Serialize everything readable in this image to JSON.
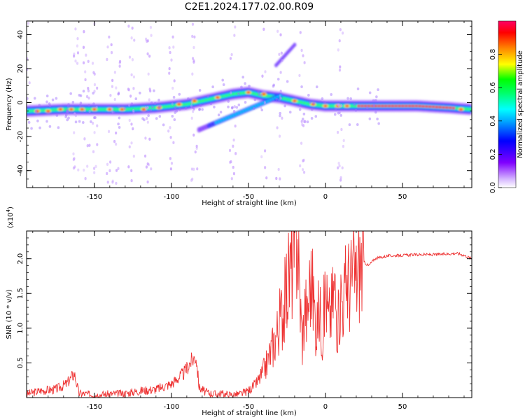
{
  "figure": {
    "title": "C2E1.2024.177.02.00.R09"
  },
  "chart_data": [
    {
      "type": "heatmap",
      "xlabel": "Height of straight line (km)",
      "ylabel": "Frequency (Hz)",
      "xlim": [
        -194,
        95
      ],
      "ylim": [
        -50,
        48
      ],
      "xticks": [
        -150,
        -100,
        -50,
        0,
        50
      ],
      "yticks": [
        -40,
        -20,
        0,
        20,
        40
      ],
      "colorbar": {
        "label": "Normalized spectral amplitude",
        "range": [
          0,
          1
        ],
        "ticks": [
          0.0,
          0.2,
          0.4,
          0.6,
          0.8
        ],
        "colors": [
          "#ffffff",
          "#c8a0ff",
          "#8000ff",
          "#0000ff",
          "#00c8ff",
          "#00ffff",
          "#00ff60",
          "#00ff00",
          "#ffff00",
          "#ff8000",
          "#ff0000",
          "#ff0060"
        ]
      },
      "ridge": {
        "x": [
          -194,
          -170,
          -150,
          -130,
          -110,
          -100,
          -90,
          -80,
          -70,
          -60,
          -50,
          -40,
          -30,
          -20,
          -10,
          0,
          10,
          20,
          40,
          60,
          80,
          95
        ],
        "y": [
          -5,
          -4,
          -4,
          -4,
          -3,
          -2,
          -1,
          1,
          3,
          5,
          6,
          4,
          3,
          1,
          -1,
          -2,
          -2,
          -2,
          -2,
          -2,
          -3,
          -4
        ]
      }
    },
    {
      "type": "line",
      "xlabel": "Height of straight line (km)",
      "ylabel": "SNR (10 * v/v)",
      "y_multiplier": "(x10",
      "y_multiplier_exp": "4",
      "xlim": [
        -194,
        95
      ],
      "ylim": [
        0,
        2.4
      ],
      "xticks": [
        -150,
        -100,
        -50,
        0,
        50
      ],
      "yticks": [
        0.5,
        1.0,
        1.5,
        2.0
      ],
      "line_color": "#ee3333",
      "series": [
        {
          "x": [
            -194,
            -185,
            -175,
            -168,
            -163,
            -160,
            -150,
            -140,
            -130,
            -120,
            -110,
            -100,
            -92,
            -88,
            -84,
            -82,
            -78,
            -72,
            -68,
            -62,
            -55,
            -50,
            -45,
            -42,
            -38,
            -35,
            -32,
            -30,
            -27,
            -25,
            -22,
            -20,
            -18,
            -17,
            -16,
            -15,
            -13,
            -12,
            -10,
            -8,
            -6,
            -4,
            -2,
            0,
            2,
            4,
            6,
            8,
            10,
            12,
            14,
            16,
            18,
            20,
            22,
            25,
            28,
            32,
            36,
            40,
            50,
            60,
            70,
            80,
            85,
            90,
            95
          ],
          "y": [
            0.05,
            0.1,
            0.12,
            0.2,
            0.35,
            0.06,
            0.04,
            0.05,
            0.06,
            0.1,
            0.12,
            0.2,
            0.35,
            0.5,
            0.6,
            0.15,
            0.08,
            0.05,
            0.06,
            0.04,
            0.05,
            0.1,
            0.2,
            0.3,
            0.5,
            0.7,
            0.9,
            1.1,
            1.3,
            1.6,
            1.9,
            2.1,
            2.4,
            1.6,
            1.2,
            0.8,
            1.4,
            1.1,
            1.7,
            1.5,
            1.0,
            1.3,
            0.9,
            1.55,
            1.1,
            1.3,
            1.6,
            1.0,
            1.5,
            1.4,
            1.75,
            1.6,
            1.8,
            1.7,
            1.9,
            1.95,
            1.9,
            2.0,
            2.02,
            2.04,
            2.05,
            2.06,
            2.06,
            2.07,
            2.08,
            2.05,
            2.0
          ]
        }
      ]
    }
  ]
}
